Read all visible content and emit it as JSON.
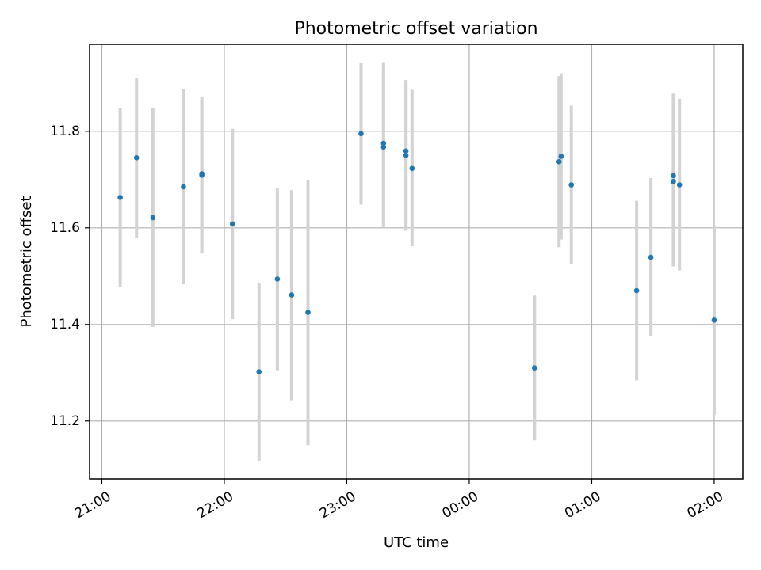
{
  "chart_data": {
    "type": "scatter",
    "title": "Photometric offset variation",
    "xlabel": "UTC time",
    "ylabel": "Photometric offset",
    "x_axis": {
      "scale": "time",
      "unit": "hours",
      "range": [
        "20:54",
        "02:14"
      ],
      "ticks": [
        {
          "label": "21:00",
          "t": 0
        },
        {
          "label": "22:00",
          "t": 1
        },
        {
          "label": "23:00",
          "t": 2
        },
        {
          "label": "00:00",
          "t": 3
        },
        {
          "label": "01:00",
          "t": 4
        },
        {
          "label": "02:00",
          "t": 5
        }
      ],
      "tick_label_rotation_deg": 30
    },
    "y_axis": {
      "range": [
        11.08,
        11.98
      ],
      "ticks": [
        {
          "label": "11.2",
          "v": 11.2
        },
        {
          "label": "11.4",
          "v": 11.4
        },
        {
          "label": "11.6",
          "v": 11.6
        },
        {
          "label": "11.8",
          "v": 11.8
        }
      ]
    },
    "grid": true,
    "colors": {
      "marker": "#1f77b4",
      "errorbar": "#d3d3d3",
      "grid": "#b0b0b0",
      "axes": "#000000"
    },
    "series": [
      {
        "points": [
          {
            "time": "21:09",
            "y": 11.663,
            "ylow": 11.478,
            "yhigh": 11.848
          },
          {
            "time": "21:17",
            "y": 11.745,
            "ylow": 11.58,
            "yhigh": 11.91
          },
          {
            "time": "21:25",
            "y": 11.621,
            "ylow": 11.395,
            "yhigh": 11.847
          },
          {
            "time": "21:40",
            "y": 11.685,
            "ylow": 11.483,
            "yhigh": 11.887
          },
          {
            "time": "21:49",
            "y": 11.712,
            "ylow": 11.547,
            "yhigh": 11.87
          },
          {
            "time": "21:49",
            "y": 11.709,
            "ylow": 11.547,
            "yhigh": 11.87
          },
          {
            "time": "22:04",
            "y": 11.608,
            "ylow": 11.411,
            "yhigh": 11.805
          },
          {
            "time": "22:17",
            "y": 11.302,
            "ylow": 11.118,
            "yhigh": 11.486
          },
          {
            "time": "22:26",
            "y": 11.494,
            "ylow": 11.305,
            "yhigh": 11.683
          },
          {
            "time": "22:33",
            "y": 11.461,
            "ylow": 11.243,
            "yhigh": 11.678
          },
          {
            "time": "22:41",
            "y": 11.425,
            "ylow": 11.15,
            "yhigh": 11.699
          },
          {
            "time": "23:07",
            "y": 11.795,
            "ylow": 11.648,
            "yhigh": 11.942
          },
          {
            "time": "23:18",
            "y": 11.767,
            "ylow": 11.6,
            "yhigh": 11.935
          },
          {
            "time": "23:18",
            "y": 11.775,
            "ylow": 11.606,
            "yhigh": 11.943
          },
          {
            "time": "23:29",
            "y": 11.75,
            "ylow": 11.594,
            "yhigh": 11.906
          },
          {
            "time": "23:29",
            "y": 11.759,
            "ylow": 11.612,
            "yhigh": 11.905
          },
          {
            "time": "23:32",
            "y": 11.723,
            "ylow": 11.562,
            "yhigh": 11.886
          },
          {
            "time": "00:32",
            "y": 11.31,
            "ylow": 11.16,
            "yhigh": 11.46
          },
          {
            "time": "00:44",
            "y": 11.737,
            "ylow": 11.56,
            "yhigh": 11.914
          },
          {
            "time": "00:45",
            "y": 11.748,
            "ylow": 11.576,
            "yhigh": 11.92
          },
          {
            "time": "00:50",
            "y": 11.689,
            "ylow": 11.525,
            "yhigh": 11.853
          },
          {
            "time": "01:22",
            "y": 11.47,
            "ylow": 11.284,
            "yhigh": 11.656
          },
          {
            "time": "01:29",
            "y": 11.539,
            "ylow": 11.376,
            "yhigh": 11.703
          },
          {
            "time": "01:40",
            "y": 11.708,
            "ylow": 11.535,
            "yhigh": 11.878
          },
          {
            "time": "01:40",
            "y": 11.696,
            "ylow": 11.52,
            "yhigh": 11.872
          },
          {
            "time": "01:43",
            "y": 11.689,
            "ylow": 11.512,
            "yhigh": 11.867
          },
          {
            "time": "02:00",
            "y": 11.409,
            "ylow": 11.213,
            "yhigh": 11.605
          }
        ]
      }
    ]
  }
}
